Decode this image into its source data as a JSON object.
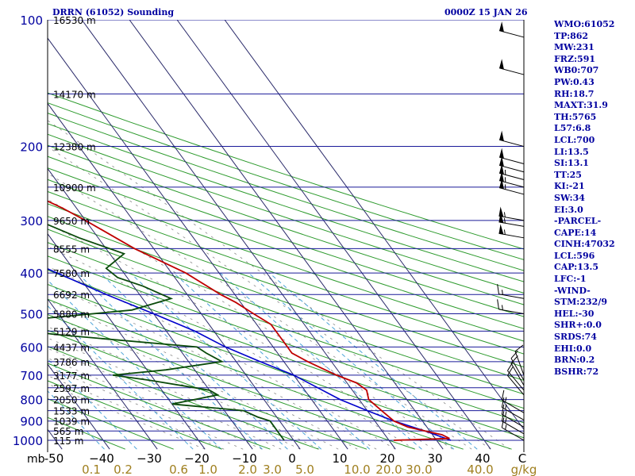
{
  "header": {
    "station": "DRRN (61052) Sounding",
    "time": "0000Z 15 JAN 26"
  },
  "stats": [
    "WMO:61052",
    "TP:862",
    "MW:231",
    "FRZ:591",
    "WB0:707",
    "PW:0.43",
    "RH:18.7",
    "MAXT:31.9",
    "TH:5765",
    "L57:6.8",
    "LCL:700",
    "LI:13.5",
    "SI:13.1",
    "TT:25",
    "KI:-21",
    "SW:34",
    "EI:3.0",
    "-PARCEL-",
    "CAPE:14",
    "CINH:47032",
    "LCL:596",
    "CAP:13.5",
    "LFC:-1",
    "-WIND-",
    "STM:232/9",
    "HEL:-30",
    "SHR+:0.0",
    "SRDS:74",
    "EHI:0.0",
    "BRN:0.2",
    "BSHR:72"
  ],
  "colors": {
    "isobar": "#1a1a99",
    "isotherm": "#2a2a6a",
    "dry_adiabat": "#2c9a2c",
    "moist_adiabat": "#888888",
    "mixing_ratio": "#4aa3d8",
    "temperature": "#c00000",
    "dewpoint": "#0a4a0a",
    "parcel": "#0000cc",
    "text_blue": "#0000a0",
    "text_black": "#000000",
    "text_olive": "#a08020"
  },
  "chart_data": {
    "type": "skew-t log-p sounding",
    "title": "DRRN (61052) Sounding",
    "pressure_unit": "mb",
    "mixing_ratio_unit": "g/kg",
    "pressure_levels": [
      100,
      200,
      300,
      400,
      500,
      600,
      700,
      800,
      900,
      1000
    ],
    "pressure_tick_labels": [
      "100",
      "200",
      "300",
      "400",
      "500",
      "600",
      "700",
      "800",
      "900",
      "1000"
    ],
    "pressure_unit_label": "mb",
    "temperature_ticks": [
      -50,
      -40,
      -30,
      -20,
      -10,
      0,
      10,
      20,
      30,
      40
    ],
    "temperature_tick_labels": [
      "-50",
      "−40",
      "−30",
      "−20",
      "−10",
      "0",
      "10",
      "20",
      "30",
      "40"
    ],
    "temperature_end_label": "C",
    "mixing_ratio_ticks": [
      "0.1",
      "0.2",
      "0.6",
      "1.0",
      "2.0",
      "3.0",
      "5.0",
      "10.0",
      "20.0",
      "30.0",
      "40.0"
    ],
    "mixing_ratio_end_label": "g/kg",
    "height_labels": [
      {
        "p": 100,
        "text": "16530 m"
      },
      {
        "p": 150,
        "text": "14170 m"
      },
      {
        "p": 200,
        "text": "12380 m"
      },
      {
        "p": 250,
        "text": "10900 m"
      },
      {
        "p": 300,
        "text": "9650 m"
      },
      {
        "p": 350,
        "text": "8555 m"
      },
      {
        "p": 400,
        "text": "7580 m"
      },
      {
        "p": 450,
        "text": "6692 m"
      },
      {
        "p": 500,
        "text": "5880 m"
      },
      {
        "p": 550,
        "text": "5129 m"
      },
      {
        "p": 600,
        "text": "4437 m"
      },
      {
        "p": 650,
        "text": "3786 m"
      },
      {
        "p": 700,
        "text": "3177 m"
      },
      {
        "p": 750,
        "text": "2597 m"
      },
      {
        "p": 800,
        "text": "2050 m"
      },
      {
        "p": 850,
        "text": "1533 m"
      },
      {
        "p": 900,
        "text": "1039 m"
      },
      {
        "p": 950,
        "text": "565 m"
      },
      {
        "p": 1000,
        "text": "115 m"
      }
    ],
    "temperature_profile": [
      [
        1000,
        21
      ],
      [
        990,
        33
      ],
      [
        970,
        32
      ],
      [
        950,
        29
      ],
      [
        930,
        26
      ],
      [
        900,
        24
      ],
      [
        850,
        23
      ],
      [
        800,
        22
      ],
      [
        760,
        23
      ],
      [
        730,
        22
      ],
      [
        700,
        19
      ],
      [
        650,
        15
      ],
      [
        620,
        13
      ],
      [
        600,
        13
      ],
      [
        560,
        13
      ],
      [
        530,
        13
      ],
      [
        500,
        11
      ],
      [
        470,
        9
      ],
      [
        450,
        7
      ],
      [
        400,
        3
      ],
      [
        350,
        -4
      ],
      [
        300,
        -10
      ],
      [
        280,
        -13
      ],
      [
        260,
        -17
      ],
      [
        250,
        -19
      ],
      [
        235,
        -20
      ],
      [
        200,
        -27
      ],
      [
        150,
        -40
      ],
      [
        100,
        -60
      ]
    ],
    "dewpoint_profile": [
      [
        1000,
        -2
      ],
      [
        960,
        -2
      ],
      [
        900,
        -2
      ],
      [
        880,
        -4
      ],
      [
        850,
        -6
      ],
      [
        820,
        -20
      ],
      [
        780,
        -9
      ],
      [
        760,
        -10
      ],
      [
        720,
        -21
      ],
      [
        700,
        -28
      ],
      [
        680,
        -16
      ],
      [
        650,
        -3
      ],
      [
        620,
        -5
      ],
      [
        600,
        -6
      ],
      [
        560,
        -34
      ],
      [
        530,
        -48
      ],
      [
        490,
        -14
      ],
      [
        460,
        -4
      ],
      [
        430,
        -8
      ],
      [
        410,
        -12
      ],
      [
        390,
        -13
      ],
      [
        360,
        -7
      ],
      [
        330,
        -14
      ],
      [
        300,
        -20
      ],
      [
        270,
        -28
      ],
      [
        250,
        -34
      ],
      [
        220,
        -40
      ],
      [
        200,
        -40
      ],
      [
        180,
        -38
      ],
      [
        160,
        -47
      ],
      [
        150,
        -54
      ],
      [
        130,
        -64
      ],
      [
        100,
        -80
      ]
    ],
    "parcel_profile": [
      [
        1000,
        33
      ],
      [
        950,
        29
      ],
      [
        900,
        24
      ],
      [
        850,
        20
      ],
      [
        800,
        16
      ],
      [
        700,
        10
      ],
      [
        650,
        5
      ],
      [
        600,
        0
      ],
      [
        550,
        -4
      ],
      [
        500,
        -10
      ],
      [
        450,
        -17
      ],
      [
        400,
        -24
      ],
      [
        350,
        -32
      ],
      [
        300,
        -41
      ],
      [
        250,
        -51
      ],
      [
        200,
        -60
      ],
      [
        150,
        -72
      ],
      [
        100,
        -88
      ]
    ],
    "wind_barbs_knots": [
      {
        "p": 1000,
        "dir": 300,
        "spd": 15
      },
      {
        "p": 965,
        "dir": 300,
        "spd": 15
      },
      {
        "p": 930,
        "dir": 300,
        "spd": 15
      },
      {
        "p": 895,
        "dir": 300,
        "spd": 15
      },
      {
        "p": 860,
        "dir": 300,
        "spd": 15
      },
      {
        "p": 780,
        "dir": 320,
        "spd": 10
      },
      {
        "p": 760,
        "dir": 320,
        "spd": 10
      },
      {
        "p": 740,
        "dir": 330,
        "spd": 10
      },
      {
        "p": 720,
        "dir": 330,
        "spd": 10
      },
      {
        "p": 700,
        "dir": 340,
        "spd": 10
      },
      {
        "p": 500,
        "dir": 280,
        "spd": 15
      },
      {
        "p": 460,
        "dir": 280,
        "spd": 15
      },
      {
        "p": 330,
        "dir": 280,
        "spd": 55
      },
      {
        "p": 310,
        "dir": 280,
        "spd": 55
      },
      {
        "p": 300,
        "dir": 280,
        "spd": 55
      },
      {
        "p": 260,
        "dir": 285,
        "spd": 55
      },
      {
        "p": 250,
        "dir": 285,
        "spd": 55
      },
      {
        "p": 240,
        "dir": 285,
        "spd": 55
      },
      {
        "p": 230,
        "dir": 285,
        "spd": 50
      },
      {
        "p": 220,
        "dir": 285,
        "spd": 50
      },
      {
        "p": 200,
        "dir": 285,
        "spd": 50
      },
      {
        "p": 135,
        "dir": 285,
        "spd": 50
      },
      {
        "p": 110,
        "dir": 285,
        "spd": 50
      }
    ]
  }
}
